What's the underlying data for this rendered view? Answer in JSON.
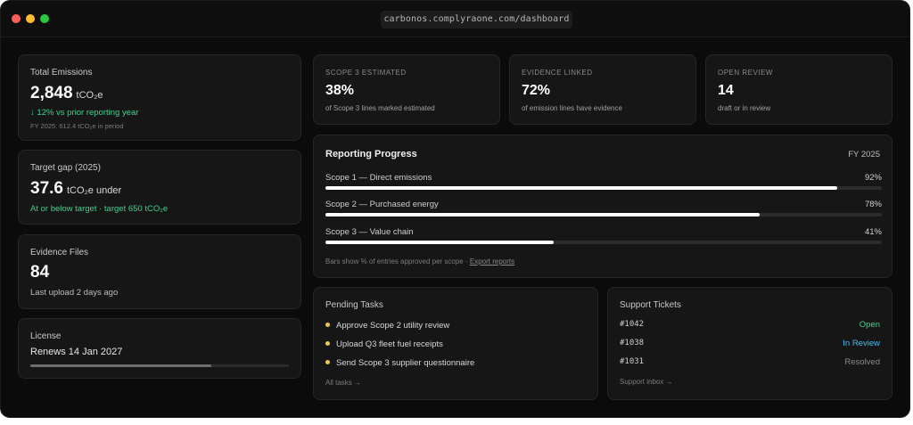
{
  "browser": {
    "url": "carbonos.complyraone.com/dashboard"
  },
  "total_emissions": {
    "label": "Total Emissions",
    "value": "2,848",
    "unit": "tCO₂e",
    "delta": "↓ 12% vs prior reporting year",
    "note": "FY 2025: 612.4 tCO₂e in period"
  },
  "target_gap": {
    "label": "Target gap (2025)",
    "value": "37.6",
    "unit": "tCO₂e under",
    "status": "At or below target · target 650 tCO₂e"
  },
  "evidence_files": {
    "label": "Evidence Files",
    "value": "84",
    "note": "Last upload 2 days ago"
  },
  "license": {
    "label": "License",
    "value": "Renews 14 Jan 2027",
    "progress": 0.7
  },
  "kpis": [
    {
      "label": "SCOPE 3 ESTIMATED",
      "value": "38%",
      "note": "of Scope 3 lines marked estimated"
    },
    {
      "label": "EVIDENCE LINKED",
      "value": "72%",
      "note": "of emission lines have evidence"
    },
    {
      "label": "OPEN REVIEW",
      "value": "14",
      "note": "draft or in review"
    }
  ],
  "reporting": {
    "title": "Reporting Progress",
    "period": "FY 2025",
    "rows": [
      {
        "name": "Scope 1 — Direct emissions",
        "pct_label": "92%",
        "pct": 92
      },
      {
        "name": "Scope 2 — Purchased energy",
        "pct_label": "78%",
        "pct": 78
      },
      {
        "name": "Scope 3 — Value chain",
        "pct_label": "41%",
        "pct": 41
      }
    ],
    "footnote": "Bars show % of entries approved per scope · ",
    "export_link": "Export reports"
  },
  "tasks": {
    "title": "Pending Tasks",
    "items": [
      "Approve Scope 2 utility review",
      "Upload Q3 fleet fuel receipts",
      "Send Scope 3 supplier questionnaire"
    ],
    "link": "All tasks →"
  },
  "tickets": {
    "title": "Support Tickets",
    "items": [
      {
        "id": "#1042",
        "status": "Open",
        "color": "#3ecf8e"
      },
      {
        "id": "#1038",
        "status": "In Review",
        "color": "#38bdf8"
      },
      {
        "id": "#1031",
        "status": "Resolved",
        "color": "#8a8a8a"
      }
    ],
    "link": "Support inbox →"
  }
}
